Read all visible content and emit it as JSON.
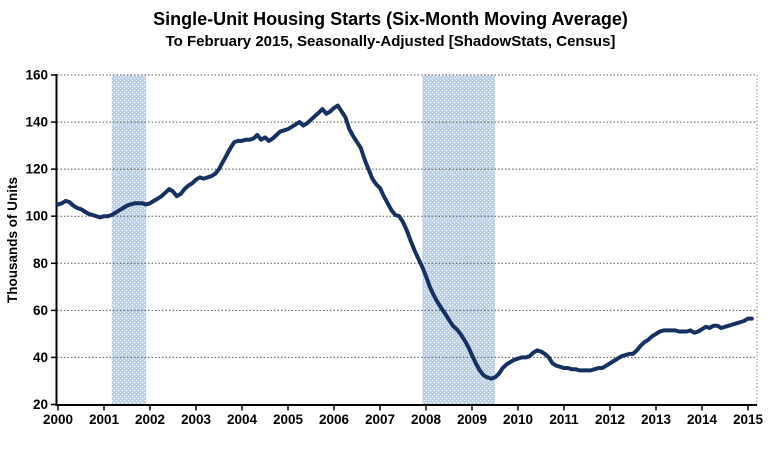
{
  "chart_data": {
    "type": "line",
    "title": "Single-Unit Housing Starts (Six-Month Moving Average)",
    "subtitle": "To February 2015, Seasonally-Adjusted [ShadowStats, Census]",
    "ylabel": "Thousands of Units",
    "ylim": [
      20,
      160
    ],
    "yticks": [
      20,
      40,
      60,
      80,
      100,
      120,
      140,
      160
    ],
    "xticks": [
      "2000",
      "2001",
      "2002",
      "2003",
      "2004",
      "2005",
      "2006",
      "2007",
      "2008",
      "2009",
      "2010",
      "2011",
      "2012",
      "2013",
      "2014",
      "2015"
    ],
    "x_start": "2000-01",
    "x_end": "2015-02",
    "x_frequency": "monthly",
    "grid": true,
    "legend_position": "none",
    "line_color": "#163060",
    "band_color": "#BDD2E8",
    "recession_bands": [
      {
        "label": "2001 recession",
        "start_year": 2001.17,
        "end_year": 2001.92
      },
      {
        "label": "2007-2009 recession",
        "start_year": 2007.92,
        "end_year": 2009.5
      }
    ],
    "series": [
      {
        "name": "Single-unit housing starts, six-month moving average (thousands of units)",
        "values": [
          105,
          105.5,
          106.5,
          106,
          104.5,
          103.5,
          103,
          102,
          101,
          100.5,
          100,
          99.5,
          100,
          100,
          100.5,
          101.5,
          102.5,
          103.5,
          104.5,
          105,
          105.5,
          105.5,
          105.5,
          105,
          105.5,
          106.5,
          107.5,
          108.5,
          110,
          111.5,
          110.5,
          108.5,
          109.5,
          111.5,
          113,
          114,
          115.5,
          116.5,
          116,
          116.5,
          117,
          118,
          120,
          123,
          126,
          129,
          131.5,
          132,
          132,
          132.5,
          132.5,
          133,
          134.5,
          132.5,
          133.5,
          132,
          133,
          134.5,
          136,
          136.5,
          137,
          138,
          139,
          140,
          138.5,
          139.5,
          141,
          142.5,
          144,
          145.5,
          143.5,
          144.5,
          146,
          147,
          144.5,
          142,
          137,
          134,
          131.5,
          129,
          124,
          120,
          116,
          113.5,
          112,
          108.5,
          105.5,
          102.5,
          100.5,
          100,
          97.5,
          94,
          89.5,
          85.5,
          82,
          78.5,
          74.5,
          70,
          66.5,
          63.5,
          61,
          58.5,
          56,
          53.5,
          52,
          50,
          47.5,
          44.5,
          41,
          37.5,
          34.5,
          32.5,
          31.5,
          31,
          31.5,
          33,
          35.5,
          37,
          38,
          39,
          39.5,
          40,
          40,
          40.5,
          42,
          43,
          42.5,
          41.5,
          40,
          37.5,
          36.5,
          36,
          35.5,
          35.5,
          35,
          35,
          34.5,
          34.5,
          34.5,
          34.5,
          35,
          35.5,
          35.5,
          36.5,
          37.5,
          38.5,
          39.5,
          40.5,
          41,
          41.5,
          41.5,
          43,
          45,
          46.5,
          47.5,
          49,
          50,
          51,
          51.5,
          51.5,
          51.5,
          51.5,
          51,
          51,
          51,
          51.5,
          50.5,
          51,
          52,
          53,
          52.5,
          53.5,
          53.5,
          52.5,
          53,
          53.5,
          54,
          54.5,
          55,
          55.5,
          56.5,
          56.5
        ]
      }
    ]
  }
}
